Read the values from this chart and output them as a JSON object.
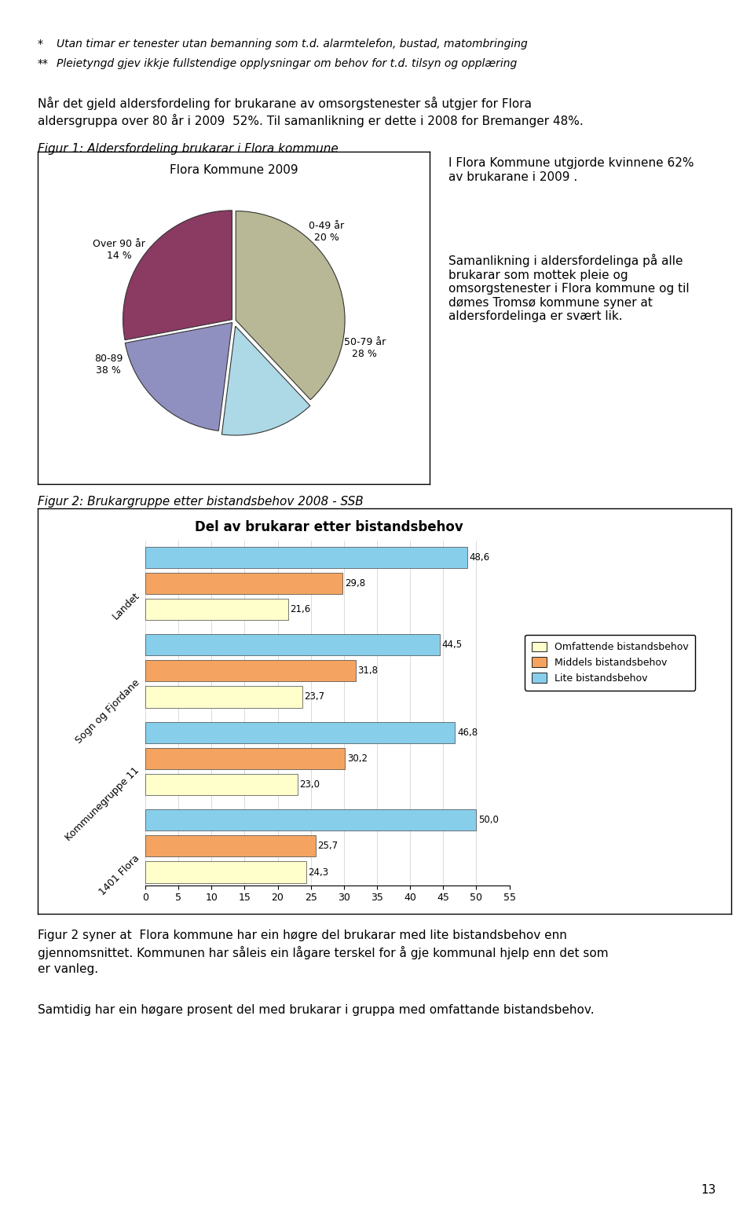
{
  "page_num": "13",
  "bullet1": "Utan timar er tenester utan bemanning som t.d. alarmtelefon, bustad, matombringing",
  "bullet2": "Pleietyngd gjev ikkje fullstendige opplysningar om behov for t.d. tilsyn og opplæring",
  "para1_line1": "Når det gjeld aldersfordeling for brukarane av omsorgstenester så utgjer for Flora",
  "para1_line2": "aldersgruppa over 80 år i 2009  52%. Til samanlikning er dette i 2008 for Bremanger 48%.",
  "fig1_caption": "Figur 1: Aldersfordeling brukarar i Flora kommune",
  "pie_title": "Flora Kommune 2009",
  "pie_slices": [
    38,
    14,
    20,
    28
  ],
  "pie_colors": [
    "#b8b896",
    "#add8e6",
    "#9090c0",
    "#8b3a62"
  ],
  "pie_explode": [
    0.02,
    0.05,
    0.02,
    0.02
  ],
  "pie_right_text1": "I Flora Kommune utgjorde kvinnene 62%\nav brukarane i 2009 .",
  "pie_right_text2": "Samanlikning i aldersfordelinga på alle\nbrukarar som mottek pleie og\nomsorgstenester i Flora kommune og til\ndømes Tromsø kommune syner at\naldersfordelinga er svært lik.",
  "fig2_caption": "Figur 2: Brukargruppe etter bistandsbehov 2008 - SSB",
  "bar_title": "Del av brukarar etter bistandsbehov",
  "bar_groups": [
    "Landet",
    "Sogn og Fjordane",
    "Kommunegruppe 11",
    "1401 Flora"
  ],
  "bar_omfattande": [
    21.6,
    23.7,
    23.0,
    24.3
  ],
  "bar_middels": [
    29.8,
    31.8,
    30.2,
    25.7
  ],
  "bar_lite": [
    48.6,
    44.5,
    46.8,
    50.0
  ],
  "bar_color_omfattande": "#ffffcc",
  "bar_color_middels": "#f4a460",
  "bar_color_lite": "#87ceeb",
  "bar_xlim": [
    0,
    55
  ],
  "bar_xticks": [
    0,
    5,
    10,
    15,
    20,
    25,
    30,
    35,
    40,
    45,
    50,
    55
  ],
  "legend_labels": [
    "Omfattende bistandsbehov",
    "Middels bistandsbehov",
    "Lite bistandsbehov"
  ],
  "para2_line1": "Figur 2 syner at  Flora kommune har ein høgre del brukarar med lite bistandsbehov enn",
  "para2_line2": "gjennomsnittet. Kommunen har såleis ein lågare terskel for å gje kommunal hjelp enn det som",
  "para2_line3": "er vanleg.",
  "para3": "Samtidig har ein høgare prosent del med brukarar i gruppa med omfattande bistandsbehov."
}
